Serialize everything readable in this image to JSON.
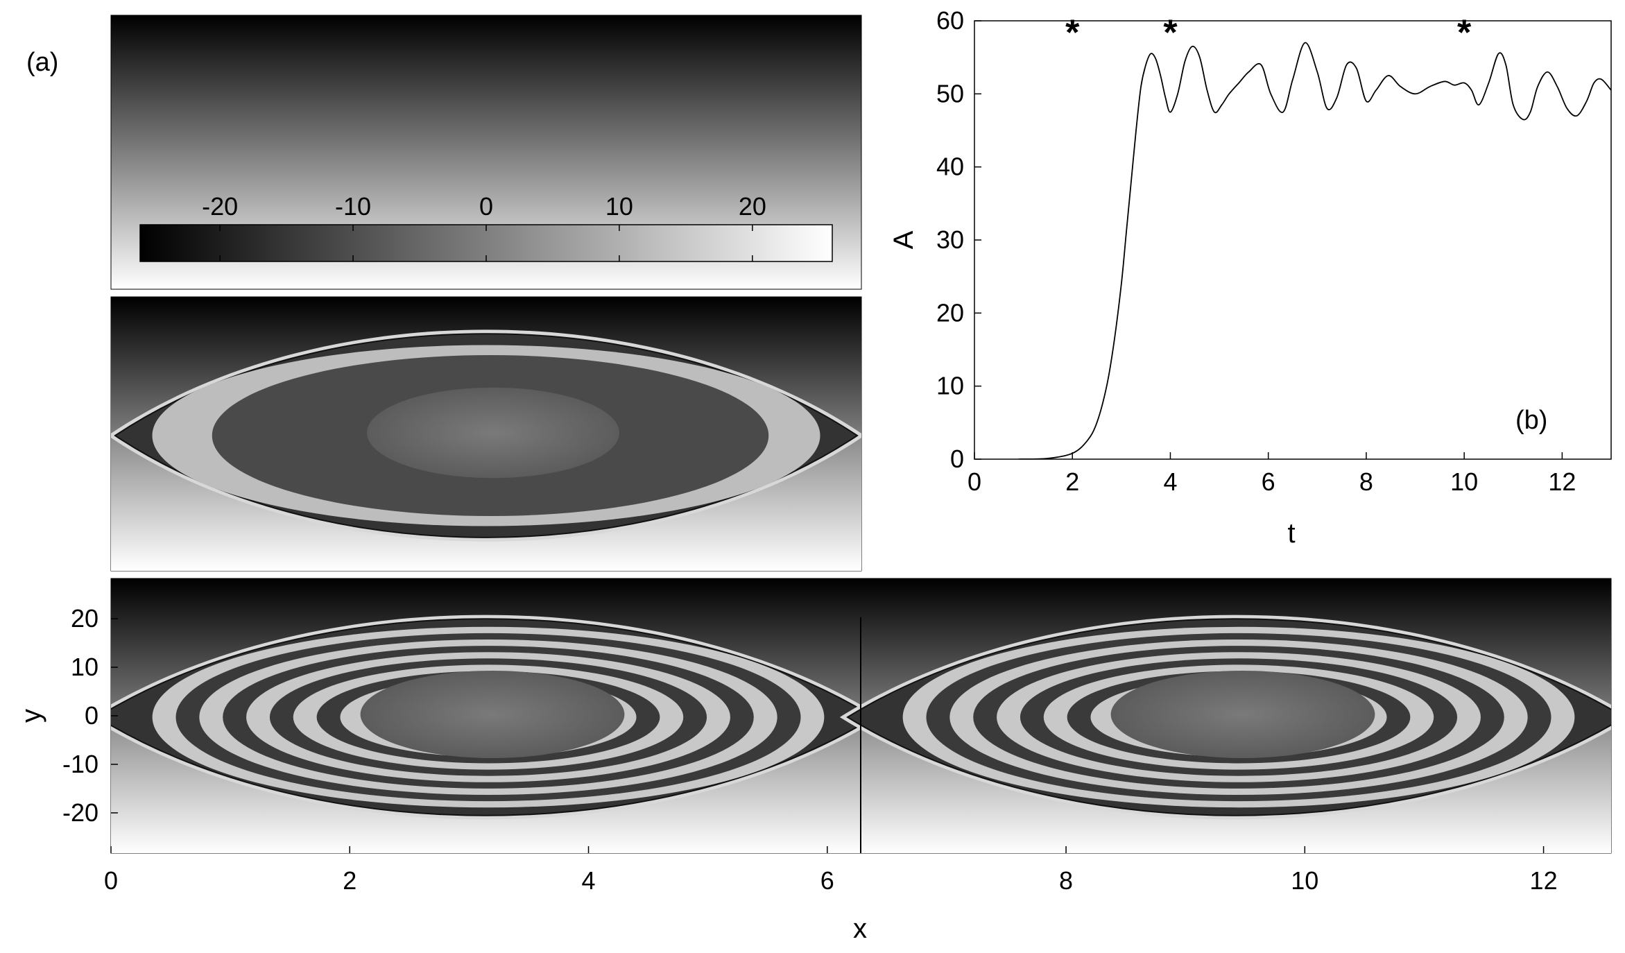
{
  "panel_a": {
    "label": "(a)",
    "colorbar": {
      "tick_labels": [
        "-20",
        "-10",
        "0",
        "10",
        "20"
      ],
      "tick_values": [
        -20,
        -10,
        0,
        10,
        20
      ],
      "range": [
        -26,
        26
      ]
    },
    "bottom_plot": {
      "xlabel": "x",
      "ylabel": "y",
      "x_tick_labels": [
        "0",
        "2",
        "4",
        "6",
        "8",
        "10",
        "12"
      ],
      "x_tick_values": [
        0,
        2,
        4,
        6,
        8,
        10,
        12
      ],
      "y_tick_labels": [
        "20",
        "10",
        "0",
        "-10",
        "-20"
      ],
      "y_tick_values": [
        20,
        10,
        0,
        -10,
        -20
      ],
      "xlim": [
        0,
        12.566
      ],
      "ylim": [
        -28.3,
        28.3
      ]
    }
  },
  "chart_data": {
    "type": "line",
    "panel_label": "(b)",
    "xlabel": "t",
    "ylabel": "A",
    "xlim": [
      0,
      13
    ],
    "ylim": [
      0,
      60
    ],
    "x_ticks": [
      0,
      2,
      4,
      6,
      8,
      10,
      12
    ],
    "y_ticks": [
      0,
      10,
      20,
      30,
      40,
      50,
      60
    ],
    "x_tick_labels": [
      "0",
      "2",
      "4",
      "6",
      "8",
      "10",
      "12"
    ],
    "y_tick_labels": [
      "0",
      "10",
      "20",
      "30",
      "40",
      "50",
      "60"
    ],
    "grid": false,
    "series": [
      {
        "x": [
          0.9,
          1.5,
          2.0,
          2.3,
          2.5,
          2.7,
          2.85,
          3.0,
          3.1,
          3.2,
          3.3,
          3.4,
          3.5,
          3.6,
          3.7,
          3.8,
          3.9,
          4.0,
          4.15,
          4.3,
          4.45,
          4.6,
          4.75,
          4.9,
          5.05,
          5.2,
          5.4,
          5.6,
          5.85,
          6.05,
          6.3,
          6.5,
          6.75,
          7.0,
          7.2,
          7.4,
          7.6,
          7.8,
          8.0,
          8.2,
          8.45,
          8.7,
          9.0,
          9.3,
          9.6,
          9.8,
          10.0,
          10.15,
          10.3,
          10.5,
          10.7,
          10.85,
          11.0,
          11.2,
          11.35,
          11.5,
          11.7,
          11.9,
          12.1,
          12.3,
          12.5,
          12.65,
          12.8,
          13.0
        ],
        "y": [
          0,
          0.1,
          0.8,
          2.5,
          5.0,
          10.0,
          16.0,
          24.0,
          31.0,
          38.0,
          45.0,
          51.0,
          54.0,
          55.5,
          54.8,
          52.5,
          49.5,
          47.5,
          50.0,
          54.5,
          56.5,
          55.0,
          50.5,
          47.5,
          48.5,
          50.0,
          51.5,
          53.0,
          54.0,
          50.0,
          47.5,
          52.0,
          57.0,
          53.0,
          48.0,
          49.5,
          54.0,
          53.5,
          49.0,
          50.5,
          52.5,
          51.0,
          50.0,
          51.0,
          51.7,
          51.2,
          51.5,
          50.5,
          48.5,
          51.5,
          55.5,
          54.0,
          48.5,
          46.5,
          47.5,
          51.0,
          53.0,
          51.0,
          48.0,
          47.0,
          49.0,
          51.5,
          52.0,
          50.5
        ]
      }
    ],
    "markers": {
      "symbol": "*",
      "x": [
        2,
        4,
        10
      ],
      "y": [
        59,
        59,
        59
      ]
    }
  }
}
